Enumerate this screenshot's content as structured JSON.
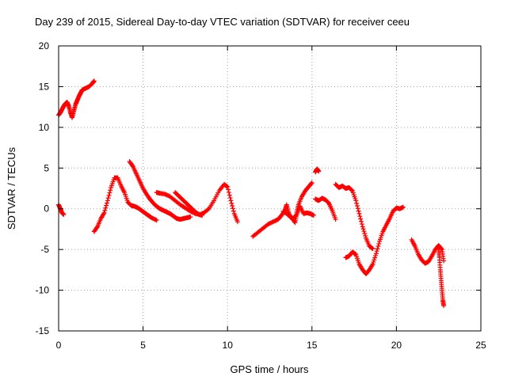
{
  "chart_data": {
    "type": "scatter",
    "title": "Day 239 of 2015, Sidereal Day-to-day VTEC variation (SDTVAR) for receiver ceeu",
    "xlabel": "GPS time / hours",
    "ylabel": "SDTVAR / TECUs",
    "xlim": [
      0,
      25
    ],
    "ylim": [
      -15,
      20
    ],
    "xticks": [
      0,
      5,
      10,
      15,
      20,
      25
    ],
    "yticks": [
      -15,
      -10,
      -5,
      0,
      5,
      10,
      15,
      20
    ],
    "xtick_labels": [
      "0",
      "5",
      "10",
      "15",
      "20",
      "25"
    ],
    "ytick_labels": [
      "-15",
      "-10",
      "-5",
      "0",
      "5",
      "10",
      "15",
      "20"
    ],
    "grid": true,
    "marker": "+",
    "color": "#ff0000",
    "series": [
      {
        "name": "s1",
        "x": [
          0.0,
          0.1,
          0.2,
          0.3
        ],
        "y": [
          0.5,
          0.0,
          -0.5,
          -0.7
        ]
      },
      {
        "name": "s2",
        "x": [
          0.0,
          0.1,
          0.2,
          0.3,
          0.4,
          0.5,
          0.6,
          0.7,
          0.8,
          0.9,
          1.0,
          1.1,
          1.2,
          1.3,
          1.4,
          1.6,
          1.8,
          2.0,
          2.1
        ],
        "y": [
          11.5,
          11.8,
          12.2,
          12.6,
          12.9,
          13.1,
          12.6,
          11.8,
          11.2,
          12.0,
          12.8,
          13.3,
          13.8,
          14.2,
          14.6,
          14.8,
          15.0,
          15.4,
          15.7
        ]
      },
      {
        "name": "s3",
        "x": [
          2.1,
          2.3,
          2.5,
          2.7,
          2.9,
          3.1,
          3.3,
          3.5,
          3.7,
          3.9,
          4.1,
          4.3,
          4.5,
          4.7,
          4.9,
          5.1,
          5.3,
          5.5,
          5.8
        ],
        "y": [
          -2.8,
          -2.2,
          -1.2,
          -0.5,
          1.0,
          2.6,
          3.8,
          3.8,
          2.8,
          2.0,
          0.8,
          0.4,
          0.3,
          0.1,
          -0.2,
          -0.5,
          -0.8,
          -1.1,
          -1.4
        ]
      },
      {
        "name": "s4",
        "x": [
          4.2,
          4.4,
          4.6,
          4.8,
          5.0,
          5.2,
          5.4,
          5.6,
          5.8,
          6.0,
          6.2,
          6.4,
          6.6,
          6.8,
          7.0,
          7.2,
          7.4,
          7.6,
          7.8
        ],
        "y": [
          5.8,
          5.2,
          4.3,
          3.4,
          2.5,
          1.8,
          1.2,
          0.7,
          0.3,
          0.0,
          -0.2,
          -0.4,
          -0.6,
          -0.9,
          -1.2,
          -1.3,
          -1.2,
          -1.1,
          -1.0
        ]
      },
      {
        "name": "s5",
        "x": [
          5.8,
          6.0,
          6.3,
          6.6,
          6.9,
          7.2,
          7.5,
          7.8,
          8.1,
          8.4,
          8.6,
          8.9,
          9.2,
          9.5,
          9.8,
          10.0,
          10.2,
          10.4,
          10.6
        ],
        "y": [
          2.0,
          1.9,
          1.8,
          1.5,
          1.0,
          0.5,
          0.1,
          -0.3,
          -0.6,
          -0.7,
          -0.5,
          0.0,
          1.0,
          2.2,
          3.0,
          2.7,
          1.0,
          -0.6,
          -1.6
        ]
      },
      {
        "name": "s6",
        "x": [
          6.9,
          7.1,
          7.3,
          7.5,
          7.7,
          7.9,
          8.1,
          8.3,
          8.5
        ],
        "y": [
          2.0,
          1.6,
          1.2,
          0.8,
          0.4,
          0.0,
          -0.4,
          -0.7,
          -0.8
        ]
      },
      {
        "name": "s7",
        "x": [
          11.5,
          11.8,
          12.1,
          12.4,
          12.7,
          13.0,
          13.2,
          13.4,
          13.5,
          13.6,
          13.7,
          13.8,
          14.0,
          14.1,
          14.2,
          14.4,
          14.6,
          14.8,
          15.0
        ],
        "y": [
          -3.4,
          -2.9,
          -2.4,
          -1.9,
          -1.6,
          -1.3,
          -0.8,
          -0.2,
          0.5,
          -0.4,
          -1.0,
          -1.1,
          -1.7,
          -0.5,
          0.5,
          1.5,
          2.2,
          2.7,
          3.2
        ]
      },
      {
        "name": "s8",
        "x": [
          13.3,
          13.5,
          13.7,
          13.9,
          14.1,
          14.3,
          14.5,
          14.7,
          14.9,
          15.1
        ],
        "y": [
          -0.3,
          -0.6,
          -0.9,
          -1.2,
          -0.7,
          0.3,
          -0.6,
          -0.5,
          -0.6,
          -0.8
        ]
      },
      {
        "name": "s9",
        "x": [
          15.2,
          15.3,
          15.4
        ],
        "y": [
          4.5,
          4.9,
          4.6
        ]
      },
      {
        "name": "s10",
        "x": [
          15.2,
          15.4,
          15.6,
          15.8,
          16.0,
          16.2,
          16.4
        ],
        "y": [
          1.2,
          1.0,
          1.3,
          1.1,
          0.7,
          -0.2,
          -1.3
        ]
      },
      {
        "name": "s11",
        "x": [
          16.4,
          16.6,
          16.8,
          17.0,
          17.2,
          17.4,
          17.6,
          17.8,
          18.0,
          18.2,
          18.4,
          18.6
        ],
        "y": [
          3.0,
          2.6,
          2.8,
          2.5,
          2.6,
          2.2,
          1.0,
          -0.6,
          -2.2,
          -3.6,
          -4.6,
          -4.9
        ]
      },
      {
        "name": "s12",
        "x": [
          17.0,
          17.2,
          17.4,
          17.6,
          17.8,
          18.0,
          18.2,
          18.4,
          18.6,
          18.8,
          19.0,
          19.2,
          19.4,
          19.6,
          19.8,
          20.0,
          20.2,
          20.4
        ],
        "y": [
          -6.0,
          -5.8,
          -5.3,
          -5.6,
          -6.8,
          -7.5,
          -8.0,
          -7.5,
          -6.8,
          -5.5,
          -4.0,
          -2.8,
          -2.0,
          -1.2,
          -0.3,
          0.1,
          0.0,
          0.2
        ]
      },
      {
        "name": "s13",
        "x": [
          20.9,
          21.1,
          21.3,
          21.5,
          21.7,
          21.9,
          22.1,
          22.3,
          22.5,
          22.7,
          22.8
        ],
        "y": [
          -3.8,
          -4.6,
          -5.6,
          -6.3,
          -6.7,
          -6.5,
          -5.8,
          -5.0,
          -4.5,
          -5.0,
          -6.4
        ]
      },
      {
        "name": "s14",
        "x": [
          22.5,
          22.55,
          22.6,
          22.65,
          22.7,
          22.75,
          22.8
        ],
        "y": [
          -5.0,
          -6.0,
          -7.5,
          -8.8,
          -10.0,
          -11.2,
          -11.9
        ]
      }
    ]
  }
}
